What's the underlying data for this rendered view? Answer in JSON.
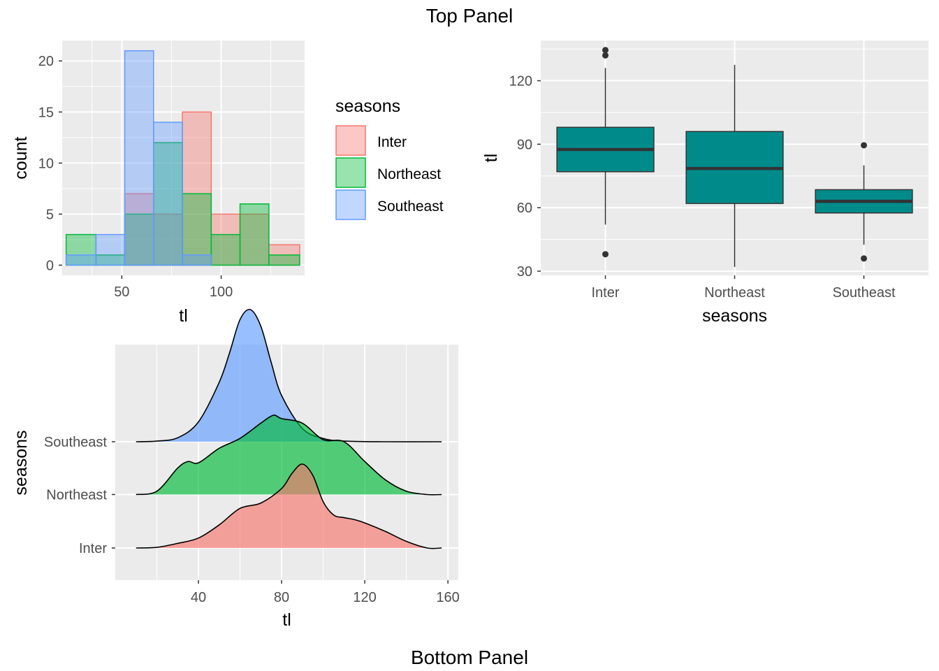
{
  "page": {
    "top_title": "Top Panel",
    "bottom_title": "Bottom Panel"
  },
  "colors": {
    "inter": "#F8766D",
    "northeast": "#00BA38",
    "southeast": "#619CFF",
    "box_fill": "#008B8B",
    "panel_bg": "#EBEBEB",
    "grid": "#FFFFFF",
    "outlier": "#333333"
  },
  "chart_data": [
    {
      "id": "histogram",
      "type": "bar",
      "subtype": "overlaid histogram",
      "xlabel": "tl",
      "ylabel": "count",
      "xlim": [
        20,
        142
      ],
      "ylim": [
        -1,
        22
      ],
      "xticks": [
        50,
        100
      ],
      "yticks": [
        0,
        5,
        10,
        15,
        20
      ],
      "bin_edges": [
        22,
        37,
        51.5,
        66,
        80.5,
        95,
        109.5,
        124,
        139.5
      ],
      "legend": {
        "title": "seasons",
        "position": "right",
        "entries": [
          "Inter",
          "Northeast",
          "Southeast"
        ]
      },
      "series": [
        {
          "name": "Inter",
          "color_key": "inter",
          "values": [
            0,
            0,
            7,
            5,
            15,
            5,
            5,
            2
          ]
        },
        {
          "name": "Northeast",
          "color_key": "northeast",
          "values": [
            3,
            1,
            5,
            12,
            7,
            3,
            6,
            1
          ]
        },
        {
          "name": "Southeast",
          "color_key": "southeast",
          "values": [
            1,
            3,
            21,
            14,
            1,
            0,
            0,
            0
          ]
        }
      ]
    },
    {
      "id": "boxplot",
      "type": "box",
      "xlabel": "seasons",
      "ylabel": "tl",
      "ylim": [
        28,
        139
      ],
      "yticks": [
        30,
        60,
        90,
        120
      ],
      "categories": [
        "Inter",
        "Northeast",
        "Southeast"
      ],
      "boxes": [
        {
          "name": "Inter",
          "q1": 77,
          "median": 87.5,
          "q3": 98,
          "whisker_low": 52,
          "whisker_high": 126,
          "outliers": [
            38,
            132,
            134.5
          ]
        },
        {
          "name": "Northeast",
          "q1": 62,
          "median": 78.5,
          "q3": 96,
          "whisker_low": 32,
          "whisker_high": 127.5,
          "outliers": []
        },
        {
          "name": "Southeast",
          "q1": 57.5,
          "median": 63,
          "q3": 68.5,
          "whisker_low": 42.5,
          "whisker_high": 80,
          "outliers": [
            36,
            89.5
          ]
        }
      ]
    },
    {
      "id": "ridgeline",
      "type": "area",
      "subtype": "ridgeline density",
      "xlabel": "tl",
      "ylabel": "seasons",
      "xlim": [
        0,
        165
      ],
      "xticks": [
        40,
        80,
        120,
        160
      ],
      "categories": [
        "Inter",
        "Northeast",
        "Southeast"
      ],
      "series": [
        {
          "name": "Inter",
          "color_key": "inter",
          "x": [
            10,
            20,
            30,
            40,
            50,
            60,
            70,
            80,
            85,
            90,
            95,
            100,
            105,
            110,
            115,
            120,
            130,
            140,
            150,
            157
          ],
          "density": [
            0.0,
            0.01,
            0.07,
            0.15,
            0.35,
            0.6,
            0.68,
            0.9,
            1.13,
            1.27,
            1.1,
            0.7,
            0.5,
            0.46,
            0.43,
            0.38,
            0.25,
            0.1,
            0.0,
            0.0
          ]
        },
        {
          "name": "Northeast",
          "color_key": "northeast",
          "x": [
            10,
            20,
            30,
            35,
            40,
            50,
            60,
            70,
            76,
            80,
            90,
            100,
            110,
            120,
            130,
            140,
            150,
            157
          ],
          "density": [
            0.0,
            0.05,
            0.4,
            0.5,
            0.48,
            0.7,
            0.85,
            1.08,
            1.2,
            1.15,
            1.08,
            0.83,
            0.8,
            0.5,
            0.22,
            0.05,
            0.0,
            0.0
          ]
        },
        {
          "name": "Southeast",
          "color_key": "southeast",
          "x": [
            10,
            20,
            30,
            40,
            50,
            55,
            60,
            65,
            70,
            75,
            80,
            90,
            100,
            110,
            130,
            157
          ],
          "density": [
            0.0,
            0.01,
            0.06,
            0.3,
            0.9,
            1.35,
            1.85,
            2.0,
            1.75,
            1.2,
            0.7,
            0.2,
            0.05,
            0.01,
            0.0,
            0.0
          ]
        }
      ]
    }
  ]
}
